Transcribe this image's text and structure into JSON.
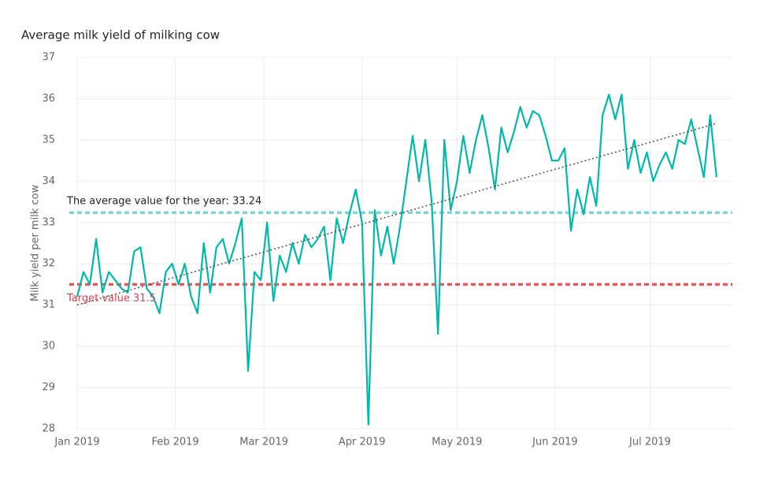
{
  "chart_data": {
    "type": "line",
    "title": "Average milk yield of milking cow",
    "y_label": "Milk yield per milk cow",
    "x": [
      0,
      2,
      4,
      6,
      8,
      10,
      12,
      14,
      16,
      18,
      20,
      22,
      24,
      26,
      28,
      30,
      32,
      34,
      36,
      38,
      40,
      42,
      44,
      46,
      48,
      50,
      52,
      54,
      56,
      58,
      60,
      62,
      64,
      66,
      68,
      70,
      72,
      74,
      76,
      78,
      80,
      82,
      84,
      86,
      88,
      90,
      92,
      94,
      96,
      98,
      100,
      102,
      104,
      106,
      108,
      110,
      112,
      114,
      116,
      118,
      120,
      122,
      124,
      126,
      128,
      130,
      132,
      134,
      136,
      138,
      140,
      142,
      144,
      146,
      148,
      150,
      152,
      154,
      156,
      158,
      160,
      162,
      164,
      166,
      168,
      170,
      172,
      174,
      176,
      178,
      180,
      182,
      184,
      186,
      188,
      190,
      192,
      194,
      196,
      198,
      200,
      202
    ],
    "series": [
      {
        "name": "Milk yield per milk cow",
        "color": "#01b8aa",
        "values": [
          31.2,
          31.8,
          31.5,
          32.6,
          31.3,
          31.8,
          31.6,
          31.4,
          31.3,
          32.3,
          32.4,
          31.4,
          31.2,
          30.8,
          31.8,
          32.0,
          31.5,
          32.0,
          31.2,
          30.8,
          32.5,
          31.3,
          32.4,
          32.6,
          32.0,
          32.5,
          33.1,
          29.4,
          31.8,
          31.6,
          33.0,
          31.1,
          32.2,
          31.8,
          32.5,
          32.0,
          32.7,
          32.4,
          32.6,
          32.9,
          31.6,
          33.1,
          32.5,
          33.2,
          33.8,
          33.0,
          28.1,
          33.3,
          32.2,
          32.9,
          32.0,
          32.9,
          34.0,
          35.1,
          34.0,
          35.0,
          33.5,
          30.3,
          35.0,
          33.3,
          34.0,
          35.1,
          34.2,
          35.0,
          35.6,
          34.8,
          33.8,
          35.3,
          34.7,
          35.2,
          35.8,
          35.3,
          35.7,
          35.6,
          35.1,
          34.5,
          34.5,
          34.8,
          32.8,
          33.8,
          33.2,
          34.1,
          33.4,
          35.6,
          36.1,
          35.5,
          36.1,
          34.3,
          35.0,
          34.2,
          34.7,
          34.0,
          34.4,
          34.7,
          34.3,
          35.0,
          34.9,
          35.5,
          34.8,
          34.1,
          35.6,
          34.1
        ]
      }
    ],
    "trend": {
      "x": [
        0,
        202
      ],
      "values": [
        31.0,
        35.4
      ],
      "color": "#555555"
    },
    "reference_lines": [
      {
        "value": 33.24,
        "label": "The average value for the year: 33.24",
        "color": "#7fd6d0",
        "label_color": "#252423"
      },
      {
        "value": 31.5,
        "label": "Target value 31.5",
        "color": "#e05a5a",
        "label_color": "#d64550"
      }
    ],
    "xlim": [
      0,
      207
    ],
    "xticks": [
      {
        "value": 0,
        "label": "Jan 2019"
      },
      {
        "value": 31,
        "label": "Feb 2019"
      },
      {
        "value": 59,
        "label": "Mar 2019"
      },
      {
        "value": 90,
        "label": "Apr 2019"
      },
      {
        "value": 120,
        "label": "May 2019"
      },
      {
        "value": 151,
        "label": "Jun 2019"
      },
      {
        "value": 181,
        "label": "Jul 2019"
      }
    ],
    "ylim": [
      28,
      37
    ],
    "yticks": [
      28,
      29,
      30,
      31,
      32,
      33,
      34,
      35,
      36,
      37
    ],
    "grid": true
  }
}
